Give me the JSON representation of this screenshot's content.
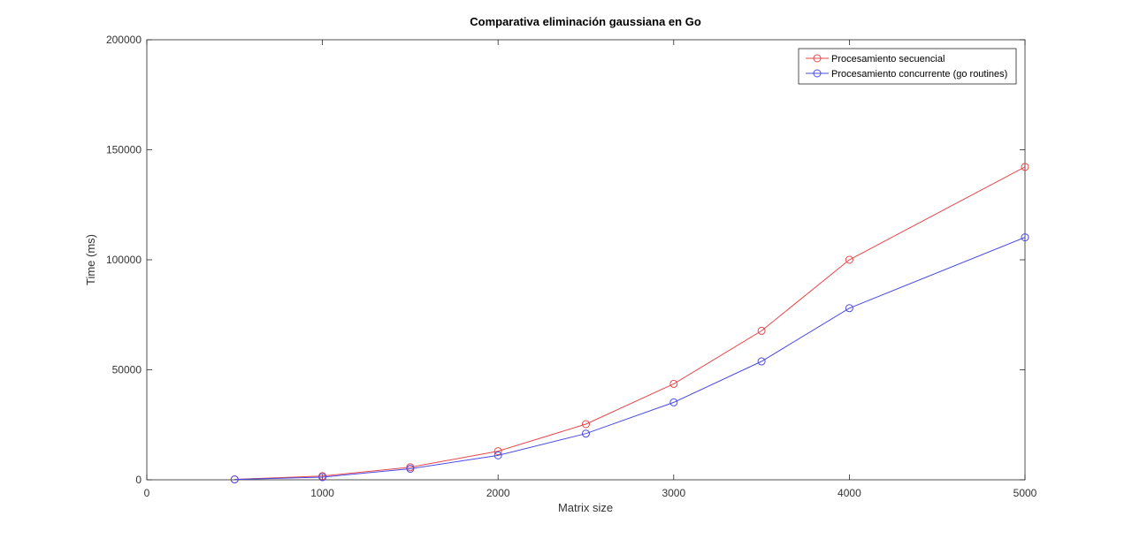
{
  "chart_data": {
    "type": "line",
    "title": "Comparativa eliminación gaussiana en Go",
    "xlabel": "Matrix size",
    "ylabel": "Time (ms)",
    "xlim": [
      0,
      5000
    ],
    "ylim": [
      0,
      200000
    ],
    "xticks": [
      0,
      1000,
      2000,
      3000,
      4000,
      5000
    ],
    "yticks": [
      0,
      50000,
      100000,
      150000,
      200000
    ],
    "grid": false,
    "legend_position": "top-right",
    "x": [
      500,
      1000,
      1500,
      2000,
      2500,
      3000,
      3500,
      4000,
      4500,
      5000
    ],
    "series": [
      {
        "name": "Procesamiento secuencial",
        "color": "#e8474a",
        "marker": "circle",
        "values": [
          200,
          1700,
          5700,
          13000,
          25300,
          43600,
          67700,
          100000,
          null,
          142200
        ]
      },
      {
        "name": "Procesamiento concurrente (go routines)",
        "color": "#4b4be8",
        "marker": "circle",
        "values": [
          150,
          1200,
          5000,
          11100,
          21000,
          35200,
          53800,
          78000,
          null,
          110200
        ]
      }
    ]
  }
}
